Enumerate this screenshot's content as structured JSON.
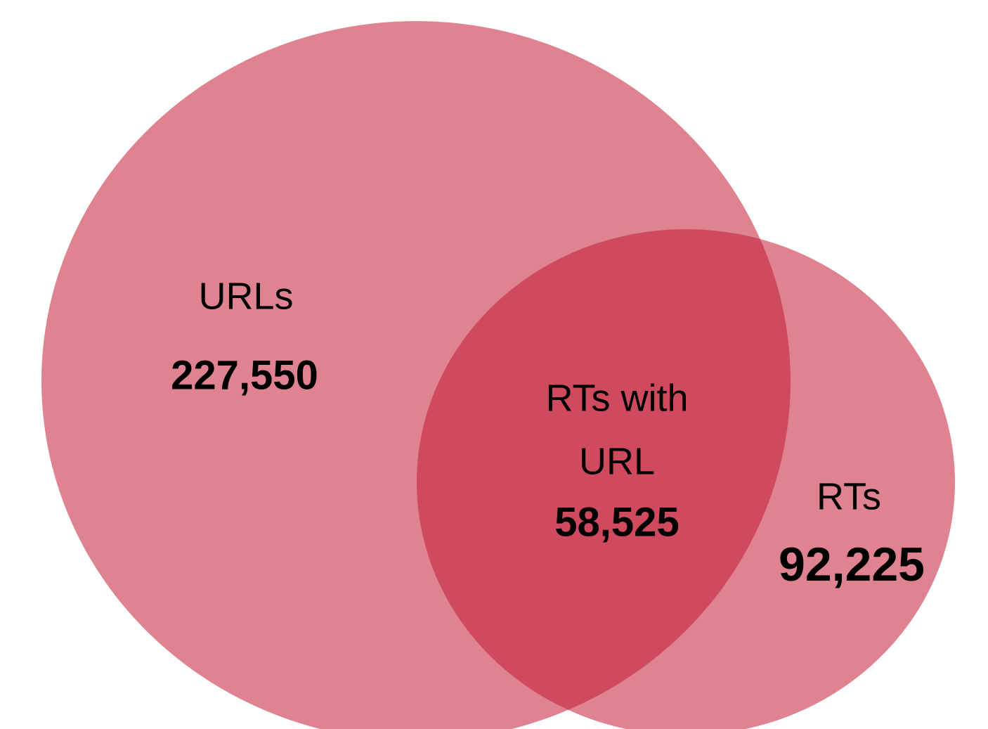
{
  "sets": [
    {
      "label": "URLs",
      "count": "227,550"
    },
    {
      "label": "RTs",
      "count": "92,225"
    }
  ],
  "intersection": {
    "label_lines": [
      "RTs with",
      "URL"
    ],
    "count": "58,525"
  }
}
